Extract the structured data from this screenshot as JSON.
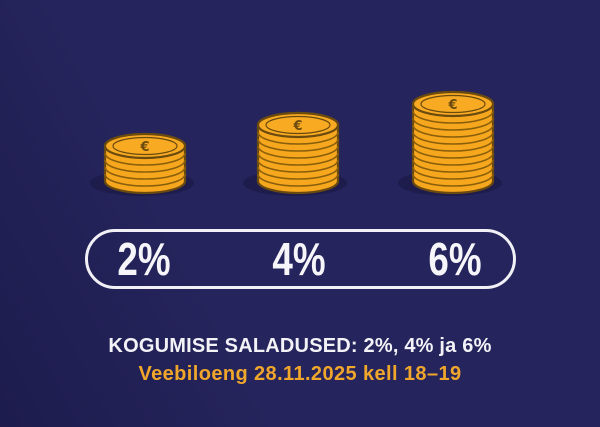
{
  "banner": {
    "background_color": "#25245c"
  },
  "chart_data": {
    "type": "bar",
    "categories": [
      "2%",
      "4%",
      "6%"
    ],
    "values": [
      5,
      8,
      11
    ],
    "values_unit": "coins-in-stack",
    "title": "KOGUMISE SALADUSED: 2%, 4% ja 6%",
    "coin_symbol": "€",
    "legend_position": "none",
    "grid": false,
    "stacks": [
      {
        "label": "2%",
        "coins": 5
      },
      {
        "label": "4%",
        "coins": 8
      },
      {
        "label": "6%",
        "coins": 11
      }
    ]
  },
  "pill": {
    "labels": [
      "2%",
      "4%",
      "6%"
    ]
  },
  "caption": {
    "title": "KOGUMISE SALADUSED: 2%, 4% ja 6%",
    "subtitle": "Veebiloeng 28.11.2025 kell 18–19"
  },
  "colors": {
    "background": "#25245c",
    "coin_fill": "#F6A71D",
    "coin_face": "#F8AB22",
    "coin_outline": "#6B4A0F",
    "coin_rim": "#8A5F0C",
    "coin_shadow": "#191843",
    "pill_border": "#F0F0F6",
    "rate_text": "#F5F5FA",
    "caption_text": "#F2F2F7",
    "subtitle_text": "#F0A62B"
  }
}
